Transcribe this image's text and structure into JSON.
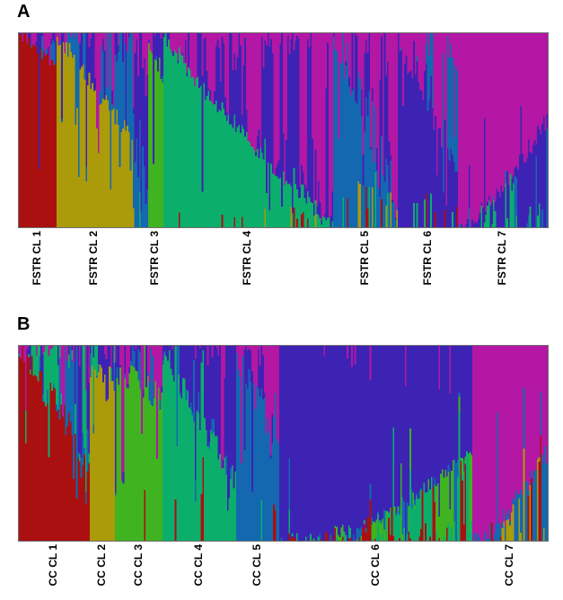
{
  "figure": {
    "panel_a_letter": "A",
    "panel_b_letter": "B"
  },
  "chart_data": {
    "type": "bar",
    "subtype": "stacked-admixture-structure-plot",
    "title": "",
    "xlabel": "",
    "ylabel": "",
    "grid": false,
    "legend": "none",
    "ylim": [
      0,
      1
    ],
    "cluster_colors": [
      "#AA1010",
      "#AB9B0A",
      "#3FB320",
      "#0CAE6C",
      "#1368B0",
      "#3C23B4",
      "#B317A3"
    ],
    "panels": [
      {
        "letter": "A",
        "population_prefix": "FSTR",
        "axis_labels": [
          "FSTR CL 1",
          "FSTR CL 2",
          "FSTR CL 3",
          "FSTR CL 4",
          "FSTR CL 5",
          "FSTR CL 6",
          "FSTR CL 7"
        ],
        "segments": [
          {
            "label": "FSTR CL 1",
            "color": 0,
            "span": [
              0.0,
              0.0713
            ],
            "anchor": "bottom",
            "main": [
              1.0,
              0.82
            ],
            "curve": 1,
            "jitter": 0.03,
            "deep_p": 0.05,
            "noise": {
              "5": 0.55,
              "4": 0.25,
              "6": 0.2
            },
            "spikes": null
          },
          {
            "label": "FSTR CL 2",
            "color": 1,
            "span": [
              0.0713,
              0.2156
            ],
            "anchor": "bottom",
            "main": [
              0.99,
              0.45
            ],
            "curve": 1,
            "jitter": 0.05,
            "deep_p": 0.12,
            "noise": {
              "4": 0.5,
              "6": 0.3,
              "5": 0.2
            },
            "spikes": null
          },
          {
            "label": null,
            "color": 4,
            "span": [
              0.2156,
              0.2445
            ],
            "anchor": "bottom",
            "main": [
              0.4,
              0.25
            ],
            "curve": 1,
            "jitter": 0.15,
            "deep_p": 0.3,
            "noise": {
              "6": 0.55,
              "5": 0.45
            },
            "spikes": {
              "colors": [
                3,
                1
              ],
              "p": [
                0.3,
                0.4
              ],
              "max": 0.2
            }
          },
          {
            "label": "FSTR CL 3",
            "color": 2,
            "span": [
              0.2445,
              0.2733
            ],
            "anchor": "bottom",
            "main": [
              0.93,
              0.8
            ],
            "curve": 1,
            "jitter": 0.06,
            "deep_p": 0.15,
            "noise": {
              "5": 0.5,
              "6": 0.3,
              "4": 0.2
            },
            "spikes": null
          },
          {
            "label": "FSTR CL 4",
            "color": 3,
            "span": [
              0.2733,
              0.5942
            ],
            "anchor": "bottom",
            "main": [
              1.0,
              0.0
            ],
            "curve": 0.85,
            "jitter": 0.04,
            "deep_p": 0.07,
            "noise": {
              "6": 0.62,
              "5": 0.38
            },
            "spikes": {
              "colors": [
                0,
                1
              ],
              "p": [
                0.02,
                0.12
              ],
              "max": 0.12
            }
          },
          {
            "label": "FSTR CL 5",
            "color": 4,
            "span": [
              0.5942,
              0.7165
            ],
            "anchor": "bottom",
            "main": [
              0.97,
              0.05
            ],
            "curve": 1,
            "jitter": 0.05,
            "deep_p": 0.1,
            "noise": {
              "6": 0.6,
              "5": 0.4
            },
            "spikes": {
              "colors": [
                3,
                1,
                0
              ],
              "p": [
                0.05,
                0.45
              ],
              "max": 0.3
            }
          },
          {
            "label": "FSTR CL 6",
            "color": 5,
            "span": [
              0.7165,
              0.8302
            ],
            "anchor": "bottom",
            "main": [
              0.95,
              0.3
            ],
            "curve": 1,
            "jitter": 0.06,
            "deep_p": 0.1,
            "noise": {
              "6": 0.85,
              "4": 0.15
            },
            "spikes": {
              "colors": [
                3,
                0
              ],
              "p": [
                0.15,
                0.25
              ],
              "max": 0.18
            }
          },
          {
            "label": "FSTR CL 7",
            "color": 6,
            "span": [
              0.8302,
              1.0
            ],
            "anchor": "top",
            "main": [
              1.0,
              0.45
            ],
            "curve": 1.3,
            "jitter": 0.05,
            "deep_p": 0.05,
            "noise": {
              "5": 0.8,
              "3": 0.12,
              "4": 0.08
            },
            "spikes": null
          }
        ]
      },
      {
        "letter": "B",
        "population_prefix": "CC",
        "axis_labels": [
          "CC CL 1",
          "CC CL 2",
          "CC CL 3",
          "CC CL 4",
          "CC CL 5",
          "CC CL 6",
          "CC CL 7"
        ],
        "segments": [
          {
            "label": "CC CL 1",
            "color": 0,
            "span": [
              0.0,
              0.1341
            ],
            "anchor": "bottom",
            "main": [
              1.0,
              0.42
            ],
            "curve": 1,
            "jitter": 0.1,
            "deep_p": 0.18,
            "noise": {
              "3": 0.4,
              "4": 0.25,
              "6": 0.2,
              "5": 0.15
            },
            "spikes": null
          },
          {
            "label": "CC CL 2",
            "color": 1,
            "span": [
              0.1341,
              0.1817
            ],
            "anchor": "bottom",
            "main": [
              0.88,
              0.78
            ],
            "curve": 1,
            "jitter": 0.1,
            "deep_p": 0.15,
            "noise": {
              "5": 0.35,
              "6": 0.25,
              "4": 0.25,
              "3": 0.15
            },
            "spikes": {
              "colors": [
                0
              ],
              "p": [
                0.02,
                0.06
              ],
              "max": 0.5
            }
          },
          {
            "label": "CC CL 3",
            "color": 2,
            "span": [
              0.1817,
              0.2717
            ],
            "anchor": "bottom",
            "main": [
              0.88,
              0.72
            ],
            "curve": 1,
            "jitter": 0.09,
            "deep_p": 0.12,
            "noise": {
              "5": 0.45,
              "6": 0.3,
              "4": 0.25
            },
            "spikes": {
              "colors": [
                0
              ],
              "p": [
                0.03,
                0.06
              ],
              "max": 0.8
            }
          },
          {
            "label": "CC CL 4",
            "color": 3,
            "span": [
              0.2717,
              0.4109
            ],
            "anchor": "bottom",
            "main": [
              0.97,
              0.3
            ],
            "curve": 1,
            "jitter": 0.08,
            "deep_p": 0.1,
            "noise": {
              "5": 0.7,
              "4": 0.18,
              "6": 0.12
            },
            "spikes": {
              "colors": [
                0
              ],
              "p": [
                0.03,
                0.1
              ],
              "max": 0.6
            }
          },
          {
            "label": "CC CL 5",
            "color": 4,
            "span": [
              0.4109,
              0.4924
            ],
            "anchor": "bottom",
            "main": [
              0.92,
              0.5
            ],
            "curve": 1,
            "jitter": 0.1,
            "deep_p": 0.12,
            "noise": {
              "6": 0.5,
              "5": 0.5
            },
            "spikes": {
              "colors": [
                3,
                0,
                1
              ],
              "p": [
                0.05,
                0.3
              ],
              "max": 0.25
            }
          },
          {
            "label": "CC CL 6",
            "color": 5,
            "span": [
              0.4924,
              0.8574
            ],
            "anchor": "top",
            "main": [
              1.0,
              0.52
            ],
            "curve": 2.0,
            "jitter": 0.04,
            "deep_p": 0.04,
            "noise": {
              "3": 0.4,
              "2": 0.25,
              "0": 0.2,
              "4": 0.15
            },
            "spikes": {
              "colors": [
                6
              ],
              "p": [
                0.06,
                0.06
              ],
              "max": 0.25
            }
          },
          {
            "label": "CC CL 7",
            "color": 6,
            "span": [
              0.8574,
              1.0
            ],
            "anchor": "top",
            "main": [
              1.0,
              0.55
            ],
            "curve": 1.5,
            "jitter": 0.06,
            "deep_p": 0.12,
            "noise": {
              "4": 0.75,
              "3": 0.1,
              "1": 0.08,
              "0": 0.07
            },
            "spikes": null
          }
        ]
      }
    ]
  }
}
